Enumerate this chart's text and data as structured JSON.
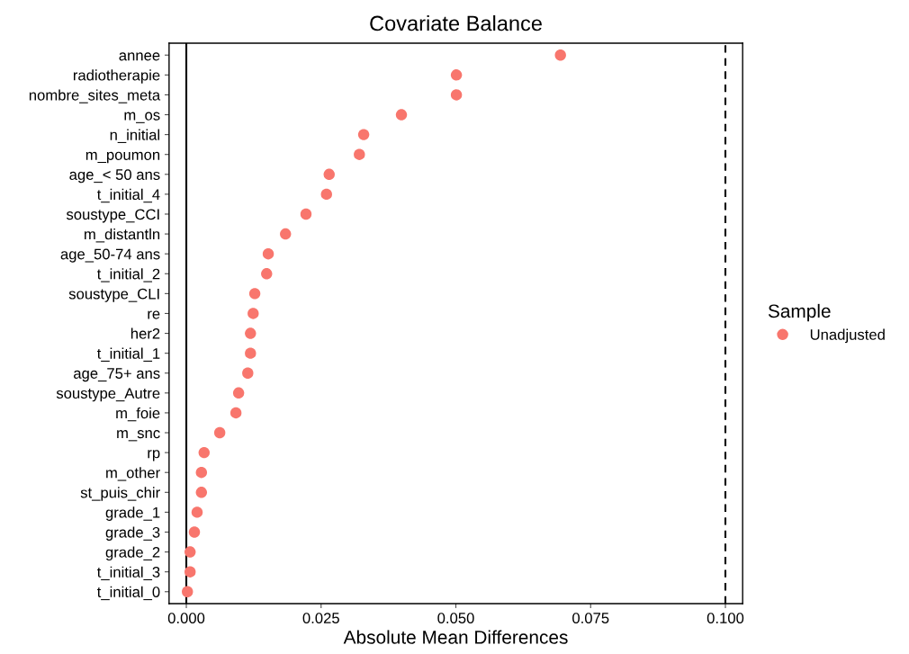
{
  "chart_data": {
    "type": "scatter",
    "title": "Covariate Balance",
    "xlabel": "Absolute Mean Differences",
    "orientation": "horizontal",
    "legend_title": "Sample",
    "legend": "right",
    "grid": false,
    "marker": "circle",
    "categories": [
      "annee",
      "radiotherapie",
      "nombre_sites_meta",
      "m_os",
      "n_initial",
      "m_poumon",
      "age_< 50 ans",
      "t_initial_4",
      "soustype_CCI",
      "m_distantln",
      "age_50-74 ans",
      "t_initial_2",
      "soustype_CLI",
      "re",
      "her2",
      "t_initial_1",
      "age_75+ ans",
      "soustype_Autre",
      "m_foie",
      "m_snc",
      "rp",
      "m_other",
      "st_puis_chir",
      "grade_1",
      "grade_3",
      "grade_2",
      "t_initial_3",
      "t_initial_0"
    ],
    "series": [
      {
        "name": "Unadjusted",
        "color": "#f8766d",
        "values": [
          0.0694,
          0.0501,
          0.0501,
          0.0399,
          0.0329,
          0.0321,
          0.0265,
          0.026,
          0.0222,
          0.0184,
          0.0152,
          0.0149,
          0.0127,
          0.0124,
          0.0119,
          0.0119,
          0.0114,
          0.0097,
          0.0092,
          0.0062,
          0.0033,
          0.0028,
          0.0028,
          0.002,
          0.0015,
          0.0007,
          0.0007,
          0.0002
        ]
      }
    ],
    "xlim": [
      -0.0032,
      0.1032
    ],
    "xticks": [
      {
        "value": 0,
        "label": "0.000"
      },
      {
        "value": 0.025,
        "label": "0.025"
      },
      {
        "value": 0.05,
        "label": "0.050"
      },
      {
        "value": 0.075,
        "label": "0.075"
      },
      {
        "value": 0.1,
        "label": "0.100"
      }
    ],
    "ref_lines": [
      {
        "axis": "x",
        "value": 0,
        "color": "#000000",
        "line_style": "solid"
      },
      {
        "axis": "x",
        "value": 0.1,
        "color": "#000000",
        "line_style": "dashed"
      }
    ]
  }
}
